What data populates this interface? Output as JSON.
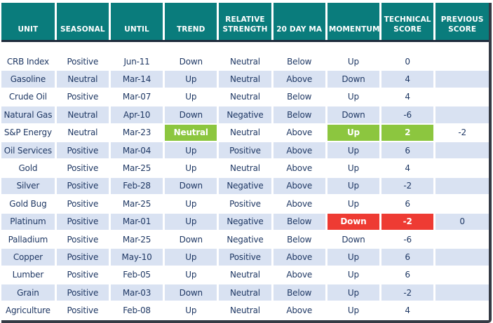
{
  "table": {
    "columns": [
      "UNIT",
      "SEASONAL",
      "UNTIL",
      "TREND",
      "RELATIVE STRENGTH",
      "20 DAY MA",
      "MOMENTUM",
      "TECHNICAL SCORE",
      "PREVIOUS SCORE"
    ],
    "rows": [
      {
        "cells": [
          "CRB Index",
          "Positive",
          "Jun-11",
          "Down",
          "Neutral",
          "Below",
          "Up",
          "0",
          ""
        ],
        "highlights": {}
      },
      {
        "cells": [
          "Gasoline",
          "Neutral",
          "Mar-14",
          "Up",
          "Neutral",
          "Above",
          "Down",
          "4",
          ""
        ],
        "highlights": {}
      },
      {
        "cells": [
          "Crude Oil",
          "Positive",
          "Mar-07",
          "Up",
          "Neutral",
          "Below",
          "Up",
          "4",
          ""
        ],
        "highlights": {}
      },
      {
        "cells": [
          "Natural Gas",
          "Neutral",
          "Apr-10",
          "Down",
          "Negative",
          "Below",
          "Down",
          "-6",
          ""
        ],
        "highlights": {}
      },
      {
        "cells": [
          "S&P Energy",
          "Neutral",
          "Mar-23",
          "Neutral",
          "Neutral",
          "Above",
          "Up",
          "2",
          "-2"
        ],
        "highlights": {
          "3": "green",
          "6": "green",
          "7": "green"
        }
      },
      {
        "cells": [
          "Oil Services",
          "Positive",
          "Mar-04",
          "Up",
          "Positive",
          "Above",
          "Up",
          "6",
          ""
        ],
        "highlights": {}
      },
      {
        "cells": [
          "Gold",
          "Positive",
          "Mar-25",
          "Up",
          "Neutral",
          "Above",
          "Up",
          "4",
          ""
        ],
        "highlights": {}
      },
      {
        "cells": [
          "Silver",
          "Positive",
          "Feb-28",
          "Down",
          "Negative",
          "Above",
          "Up",
          "-2",
          ""
        ],
        "highlights": {}
      },
      {
        "cells": [
          "Gold Bug",
          "Positive",
          "Mar-25",
          "Up",
          "Positive",
          "Above",
          "Up",
          "6",
          ""
        ],
        "highlights": {}
      },
      {
        "cells": [
          "Platinum",
          "Positive",
          "Mar-01",
          "Up",
          "Negative",
          "Below",
          "Down",
          "-2",
          "0"
        ],
        "highlights": {
          "6": "red",
          "7": "red"
        }
      },
      {
        "cells": [
          "Palladium",
          "Positive",
          "Mar-25",
          "Down",
          "Negative",
          "Below",
          "Down",
          "-6",
          ""
        ],
        "highlights": {}
      },
      {
        "cells": [
          "Copper",
          "Positive",
          "May-10",
          "Up",
          "Positive",
          "Above",
          "Up",
          "6",
          ""
        ],
        "highlights": {}
      },
      {
        "cells": [
          "Lumber",
          "Positive",
          "Feb-05",
          "Up",
          "Neutral",
          "Above",
          "Up",
          "6",
          ""
        ],
        "highlights": {}
      },
      {
        "cells": [
          "Grain",
          "Positive",
          "Mar-03",
          "Down",
          "Neutral",
          "Below",
          "Up",
          "-2",
          ""
        ],
        "highlights": {}
      },
      {
        "cells": [
          "Agriculture",
          "Positive",
          "Feb-08",
          "Up",
          "Neutral",
          "Above",
          "Up",
          "4",
          ""
        ],
        "highlights": {}
      }
    ]
  },
  "colors": {
    "header_bg": "#0A7C7C",
    "header_text": "#FFFFFF",
    "rule_line": "#1F2B3C",
    "stripe_bg": "#D9E2F2",
    "text": "#1F3864",
    "highlight_green": "#8CC63F",
    "highlight_red": "#EE3B33",
    "frame_border": "#343A44"
  }
}
